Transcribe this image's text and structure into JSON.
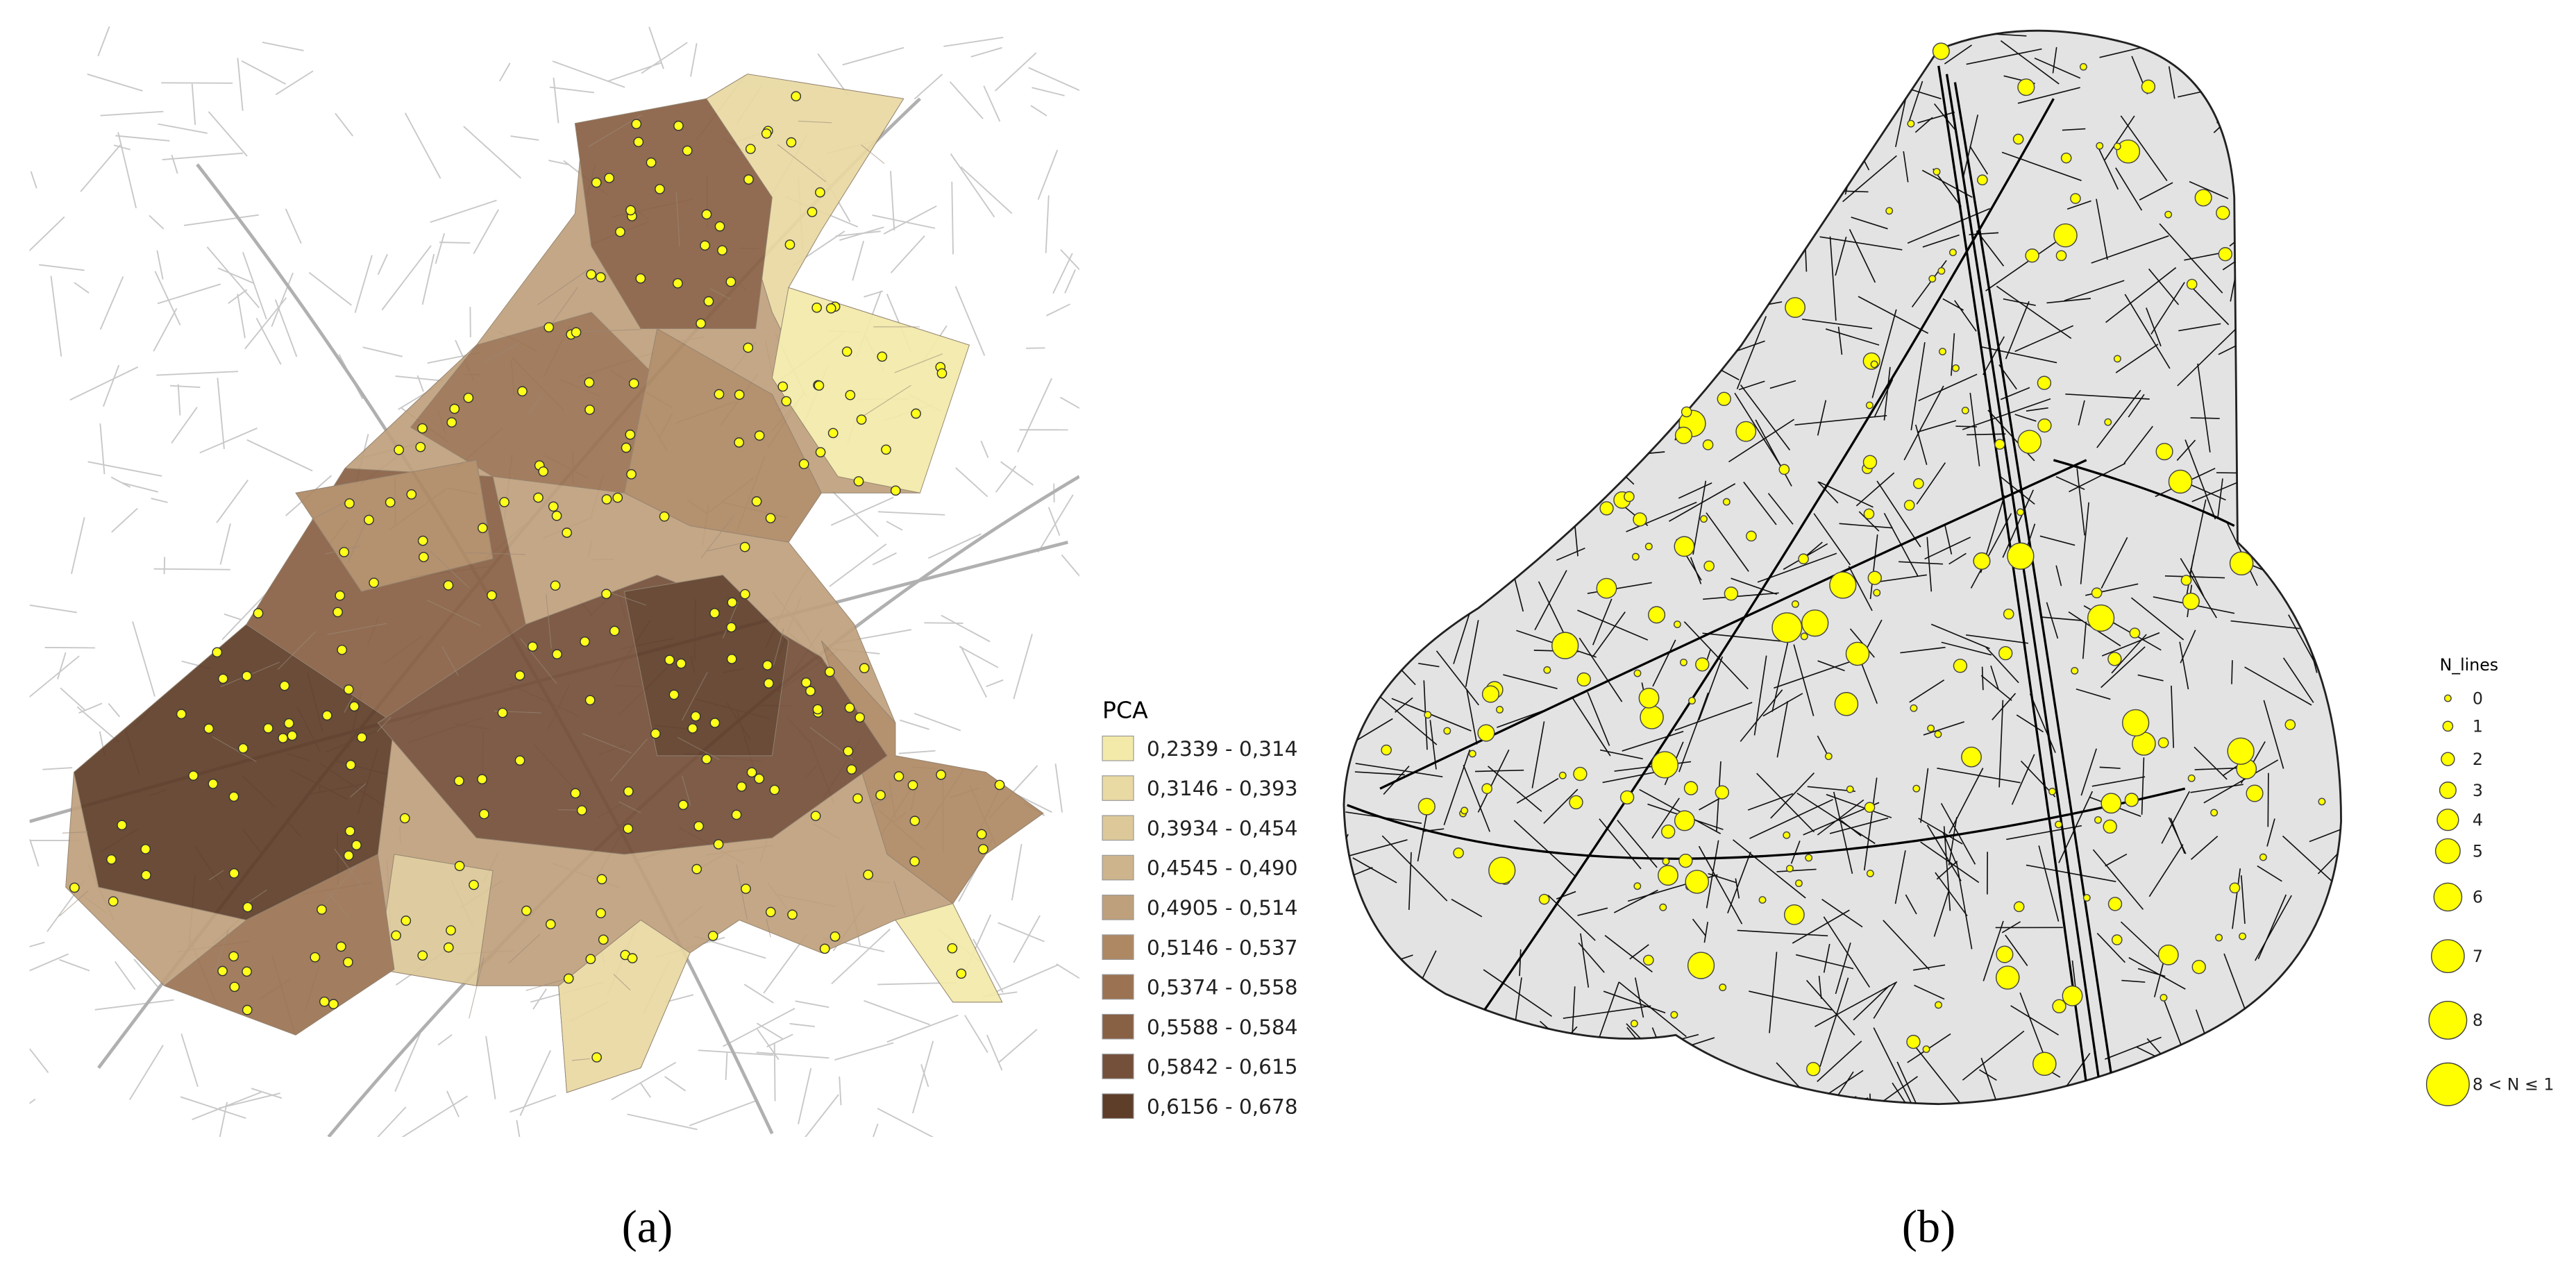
{
  "panel_a": {
    "legend": {
      "title": "PCA",
      "classes": [
        {
          "label": "0,2339 - 0,314",
          "color": "#f3eaa9"
        },
        {
          "label": "0,3146 - 0,393",
          "color": "#e9d9a2"
        },
        {
          "label": "0,3934 - 0,454",
          "color": "#dcc899"
        },
        {
          "label": "0,4545 - 0,490",
          "color": "#cdb48c"
        },
        {
          "label": "0,4905 - 0,514",
          "color": "#bfa07c"
        },
        {
          "label": "0,5146 - 0,537",
          "color": "#ae8863"
        },
        {
          "label": "0,5374 - 0,558",
          "color": "#9b7352"
        },
        {
          "label": "0,5588 - 0,584",
          "color": "#886044"
        },
        {
          "label": "0,5842 - 0,615",
          "color": "#744f39"
        },
        {
          "label": "0,6156 - 0,678",
          "color": "#5e3d29"
        }
      ]
    },
    "caption": "(a)"
  },
  "panel_b": {
    "legend": {
      "title": "N_lines",
      "classes": [
        "0",
        "1",
        "2",
        "3",
        "4",
        "5",
        "6",
        "7",
        "8",
        "8 < N ≤ 1"
      ]
    },
    "caption": "(b)"
  }
}
